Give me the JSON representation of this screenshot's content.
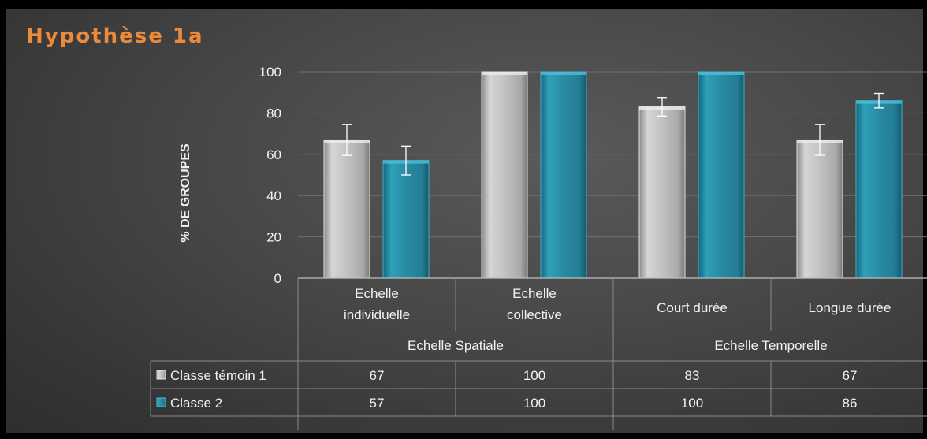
{
  "title": "Hypothèse 1a",
  "colors": {
    "title": "#ec8a3c",
    "series1": "#b8b8b8",
    "series2": "#2a8ba3"
  },
  "chart_data": {
    "type": "bar",
    "ylabel": "% DE GROUPES",
    "ylim": [
      0,
      100
    ],
    "yticks": [
      0,
      20,
      40,
      60,
      80,
      100
    ],
    "grid": true,
    "categories": [
      [
        "Echelle",
        "individuelle"
      ],
      [
        "Echelle",
        "collective"
      ],
      [
        "Court durée"
      ],
      [
        "Longue durée"
      ]
    ],
    "groups": [
      {
        "label": "Echelle Spatiale",
        "span": 2
      },
      {
        "label": "Echelle Temporelle",
        "span": 2
      }
    ],
    "series": [
      {
        "name": "Classe témoin 1",
        "values": [
          67,
          100,
          83,
          67
        ],
        "errors": [
          7.5,
          0,
          4.5,
          7.5
        ]
      },
      {
        "name": "Classe 2",
        "values": [
          57,
          100,
          100,
          86
        ],
        "errors": [
          7,
          0,
          0,
          3.5
        ]
      }
    ],
    "table": [
      [
        "67",
        "100",
        "83",
        "67"
      ],
      [
        "57",
        "100",
        "100",
        "86"
      ]
    ]
  }
}
